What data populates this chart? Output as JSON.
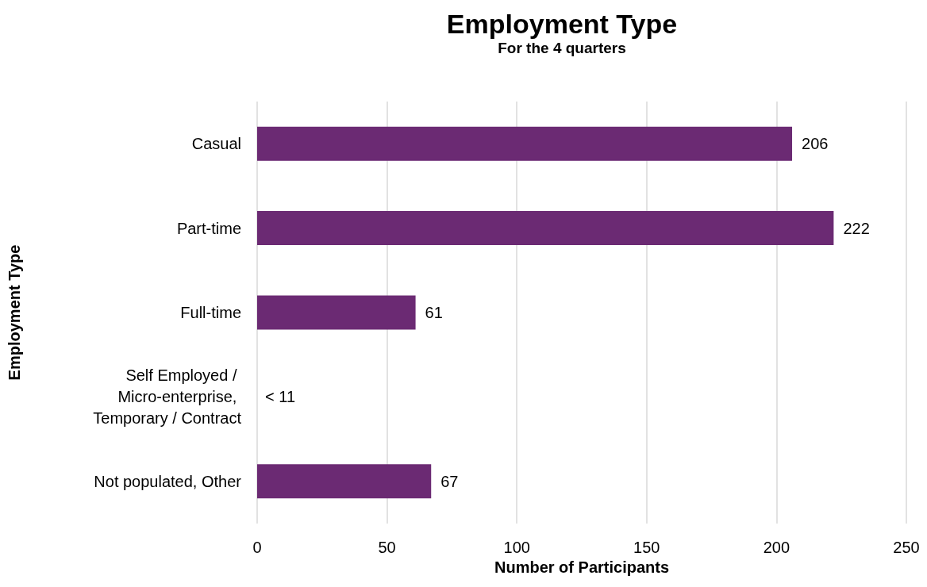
{
  "chart_data": {
    "type": "bar",
    "orientation": "horizontal",
    "title": "Employment Type",
    "subtitle": "For the 4 quarters",
    "xlabel": "Number of Participants",
    "ylabel": "Employment Type",
    "categories": [
      "Casual",
      "Part-time",
      "Full-time",
      "Self Employed / Micro-enterprise, Temporary / Contract",
      "Not populated, Other"
    ],
    "values": [
      206,
      222,
      61,
      null,
      67
    ],
    "value_labels": [
      "206",
      "222",
      "61",
      "< 11",
      "67"
    ],
    "color": "#6b2a73",
    "xlim": [
      0,
      250
    ],
    "xticks": [
      0,
      50,
      100,
      150,
      200,
      250
    ],
    "grid": "x"
  }
}
